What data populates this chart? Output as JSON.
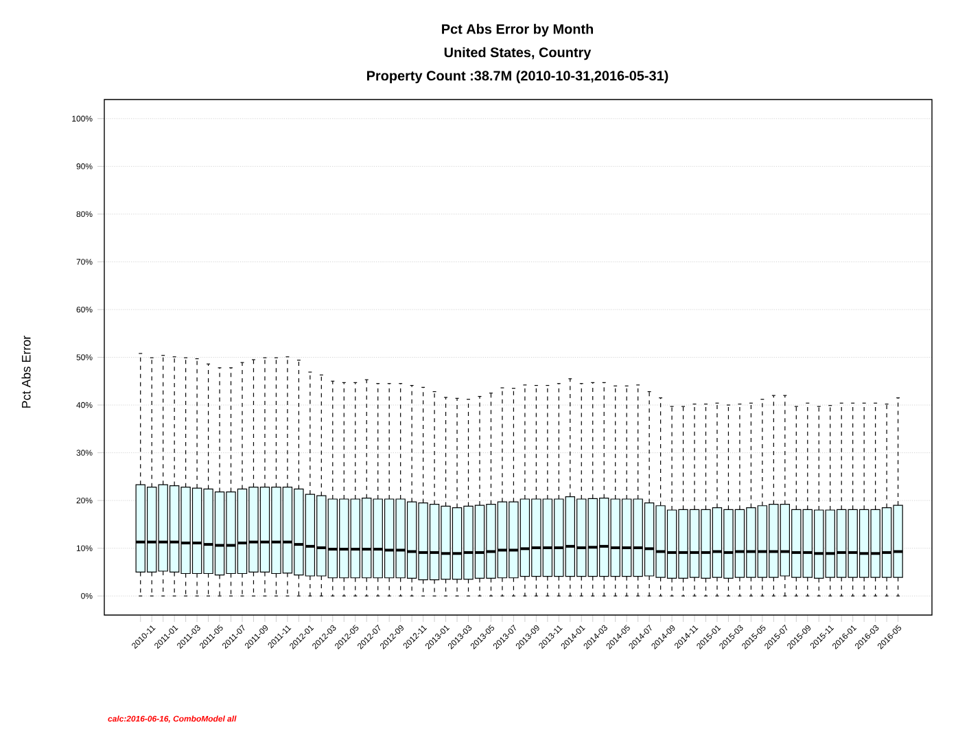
{
  "chart_data": {
    "type": "box",
    "title": "Pct Abs Error by Month",
    "subtitle": "United States, Country",
    "annotations": [
      "Property Count :38.7M (2010-10-31,2016-05-31)",
      "calc:2016-06-16, ComboModel all"
    ],
    "ylabel": "Pct Abs Error",
    "categories": [
      null,
      "2010-11",
      null,
      "2011-01",
      null,
      "2011-03",
      null,
      "2011-05",
      null,
      "2011-07",
      null,
      "2011-09",
      null,
      "2011-11",
      null,
      "2012-01",
      null,
      "2012-03",
      null,
      "2012-05",
      null,
      "2012-07",
      null,
      "2012-09",
      null,
      "2012-11",
      null,
      "2013-01",
      null,
      "2013-03",
      null,
      "2013-05",
      null,
      "2013-07",
      null,
      "2013-09",
      null,
      "2013-11",
      null,
      "2014-01",
      null,
      "2014-03",
      null,
      "2014-05",
      null,
      "2014-07",
      null,
      "2014-09",
      null,
      "2014-11",
      null,
      "2015-01",
      null,
      "2015-03",
      null,
      "2015-05",
      null,
      "2015-07",
      null,
      "2015-09",
      null,
      "2015-11",
      null,
      "2016-01",
      null,
      "2016-03",
      null,
      "2016-05"
    ],
    "ylim": [
      -4,
      104
    ],
    "yticks": [
      {
        "value": 0,
        "label": "0%"
      },
      {
        "value": 10,
        "label": "10%"
      },
      {
        "value": 20,
        "label": "20%"
      },
      {
        "value": 30,
        "label": "30%"
      },
      {
        "value": 40,
        "label": "40%"
      },
      {
        "value": 50,
        "label": "50%"
      },
      {
        "value": 60,
        "label": "60%"
      },
      {
        "value": 70,
        "label": "70%"
      },
      {
        "value": 80,
        "label": "80%"
      },
      {
        "value": 90,
        "label": "90%"
      },
      {
        "value": 100,
        "label": "100%"
      }
    ],
    "grid": "y",
    "series": [
      {
        "color": "#e0ffff",
        "boxes": [
          {
            "low": 0,
            "q1": 5.0,
            "median": 11.3,
            "q3": 23.3,
            "high": 50.8
          },
          {
            "low": 0,
            "q1": 5.0,
            "median": 11.3,
            "q3": 22.8,
            "high": 49.9
          },
          {
            "low": 0,
            "q1": 5.2,
            "median": 11.3,
            "q3": 23.3,
            "high": 50.4
          },
          {
            "low": 0,
            "q1": 5.0,
            "median": 11.3,
            "q3": 23.1,
            "high": 50.1
          },
          {
            "low": 0,
            "q1": 4.7,
            "median": 11.1,
            "q3": 22.8,
            "high": 49.9
          },
          {
            "low": 0,
            "q1": 4.7,
            "median": 11.1,
            "q3": 22.6,
            "high": 49.7
          },
          {
            "low": 0,
            "q1": 4.7,
            "median": 10.8,
            "q3": 22.4,
            "high": 48.6
          },
          {
            "low": 0,
            "q1": 4.4,
            "median": 10.6,
            "q3": 21.8,
            "high": 47.8
          },
          {
            "low": 0,
            "q1": 4.7,
            "median": 10.6,
            "q3": 21.8,
            "high": 47.8
          },
          {
            "low": 0,
            "q1": 4.7,
            "median": 11.1,
            "q3": 22.4,
            "high": 48.9
          },
          {
            "low": 0,
            "q1": 5.0,
            "median": 11.3,
            "q3": 22.8,
            "high": 49.5
          },
          {
            "low": 0,
            "q1": 5.0,
            "median": 11.3,
            "q3": 22.8,
            "high": 49.9
          },
          {
            "low": 0,
            "q1": 4.7,
            "median": 11.3,
            "q3": 22.8,
            "high": 49.9
          },
          {
            "low": 0,
            "q1": 4.8,
            "median": 11.3,
            "q3": 22.8,
            "high": 50.1
          },
          {
            "low": 0,
            "q1": 4.4,
            "median": 10.8,
            "q3": 22.4,
            "high": 49.4
          },
          {
            "low": 0,
            "q1": 4.2,
            "median": 10.4,
            "q3": 21.3,
            "high": 46.9
          },
          {
            "low": 0,
            "q1": 4.2,
            "median": 10.1,
            "q3": 21.0,
            "high": 46.3
          },
          {
            "low": 0,
            "q1": 3.8,
            "median": 9.8,
            "q3": 20.3,
            "high": 45.0
          },
          {
            "low": 0,
            "q1": 3.8,
            "median": 9.8,
            "q3": 20.3,
            "high": 44.7
          },
          {
            "low": 0,
            "q1": 3.8,
            "median": 9.8,
            "q3": 20.3,
            "high": 44.7
          },
          {
            "low": 0,
            "q1": 3.8,
            "median": 9.8,
            "q3": 20.5,
            "high": 45.3
          },
          {
            "low": 0,
            "q1": 3.8,
            "median": 9.8,
            "q3": 20.3,
            "high": 44.5
          },
          {
            "low": 0,
            "q1": 3.8,
            "median": 9.6,
            "q3": 20.3,
            "high": 44.5
          },
          {
            "low": 0,
            "q1": 3.8,
            "median": 9.6,
            "q3": 20.3,
            "high": 44.5
          },
          {
            "low": 0,
            "q1": 3.7,
            "median": 9.3,
            "q3": 19.7,
            "high": 44.1
          },
          {
            "low": 0,
            "q1": 3.4,
            "median": 9.1,
            "q3": 19.5,
            "high": 43.7
          },
          {
            "low": 0,
            "q1": 3.4,
            "median": 9.1,
            "q3": 19.2,
            "high": 42.8
          },
          {
            "low": 0,
            "q1": 3.5,
            "median": 8.9,
            "q3": 18.8,
            "high": 41.6
          },
          {
            "low": 0,
            "q1": 3.5,
            "median": 8.9,
            "q3": 18.5,
            "high": 41.4
          },
          {
            "low": 0,
            "q1": 3.5,
            "median": 9.1,
            "q3": 18.8,
            "high": 41.2
          },
          {
            "low": 0,
            "q1": 3.7,
            "median": 9.1,
            "q3": 19.0,
            "high": 41.8
          },
          {
            "low": 0,
            "q1": 3.7,
            "median": 9.3,
            "q3": 19.2,
            "high": 42.5
          },
          {
            "low": 0,
            "q1": 3.8,
            "median": 9.6,
            "q3": 19.7,
            "high": 43.6
          },
          {
            "low": 0,
            "q1": 3.8,
            "median": 9.6,
            "q3": 19.7,
            "high": 43.5
          },
          {
            "low": 0,
            "q1": 4.1,
            "median": 9.9,
            "q3": 20.3,
            "high": 44.2
          },
          {
            "low": 0,
            "q1": 4.1,
            "median": 10.1,
            "q3": 20.3,
            "high": 44.1
          },
          {
            "low": 0,
            "q1": 4.1,
            "median": 10.1,
            "q3": 20.3,
            "high": 44.1
          },
          {
            "low": 0,
            "q1": 4.1,
            "median": 10.1,
            "q3": 20.3,
            "high": 44.5
          },
          {
            "low": 0,
            "q1": 4.1,
            "median": 10.4,
            "q3": 20.8,
            "high": 45.5
          },
          {
            "low": 0,
            "q1": 4.1,
            "median": 10.1,
            "q3": 20.3,
            "high": 44.5
          },
          {
            "low": 0,
            "q1": 4.1,
            "median": 10.2,
            "q3": 20.4,
            "high": 44.7
          },
          {
            "low": 0,
            "q1": 4.1,
            "median": 10.4,
            "q3": 20.5,
            "high": 44.7
          },
          {
            "low": 0,
            "q1": 4.1,
            "median": 10.1,
            "q3": 20.3,
            "high": 44.0
          },
          {
            "low": 0,
            "q1": 4.1,
            "median": 10.1,
            "q3": 20.3,
            "high": 44.0
          },
          {
            "low": 0,
            "q1": 4.1,
            "median": 10.1,
            "q3": 20.3,
            "high": 44.2
          },
          {
            "low": 0,
            "q1": 4.2,
            "median": 9.9,
            "q3": 19.5,
            "high": 42.8
          },
          {
            "low": 0,
            "q1": 3.9,
            "median": 9.3,
            "q3": 18.9,
            "high": 41.5
          },
          {
            "low": 0,
            "q1": 3.7,
            "median": 9.1,
            "q3": 18.0,
            "high": 39.7
          },
          {
            "low": 0,
            "q1": 3.7,
            "median": 9.1,
            "q3": 18.1,
            "high": 39.7
          },
          {
            "low": 0,
            "q1": 3.9,
            "median": 9.1,
            "q3": 18.1,
            "high": 40.2
          },
          {
            "low": 0,
            "q1": 3.7,
            "median": 9.1,
            "q3": 18.1,
            "high": 40.2
          },
          {
            "low": 0,
            "q1": 3.9,
            "median": 9.3,
            "q3": 18.5,
            "high": 40.4
          },
          {
            "low": 0,
            "q1": 3.7,
            "median": 9.1,
            "q3": 18.1,
            "high": 40.0
          },
          {
            "low": 0,
            "q1": 3.9,
            "median": 9.3,
            "q3": 18.1,
            "high": 40.2
          },
          {
            "low": 0,
            "q1": 3.9,
            "median": 9.3,
            "q3": 18.5,
            "high": 40.4
          },
          {
            "low": 0,
            "q1": 3.9,
            "median": 9.3,
            "q3": 18.9,
            "high": 41.2
          },
          {
            "low": 0,
            "q1": 3.9,
            "median": 9.3,
            "q3": 19.2,
            "high": 42.0
          },
          {
            "low": 0,
            "q1": 4.2,
            "median": 9.3,
            "q3": 19.2,
            "high": 42.0
          },
          {
            "low": 0,
            "q1": 3.9,
            "median": 9.1,
            "q3": 18.1,
            "high": 39.7
          },
          {
            "low": 0,
            "q1": 3.9,
            "median": 9.1,
            "q3": 18.1,
            "high": 40.4
          },
          {
            "low": 0,
            "q1": 3.7,
            "median": 8.9,
            "q3": 18.0,
            "high": 39.7
          },
          {
            "low": 0,
            "q1": 3.9,
            "median": 8.9,
            "q3": 18.0,
            "high": 39.9
          },
          {
            "low": 0,
            "q1": 3.9,
            "median": 9.1,
            "q3": 18.1,
            "high": 40.4
          },
          {
            "low": 0,
            "q1": 3.9,
            "median": 9.1,
            "q3": 18.1,
            "high": 40.4
          },
          {
            "low": 0,
            "q1": 3.9,
            "median": 8.9,
            "q3": 18.1,
            "high": 40.4
          },
          {
            "low": 0,
            "q1": 3.9,
            "median": 8.9,
            "q3": 18.1,
            "high": 40.4
          },
          {
            "low": 0,
            "q1": 3.9,
            "median": 9.1,
            "q3": 18.5,
            "high": 40.2
          },
          {
            "low": 0,
            "q1": 3.9,
            "median": 9.3,
            "q3": 19.0,
            "high": 41.5
          }
        ]
      }
    ]
  }
}
